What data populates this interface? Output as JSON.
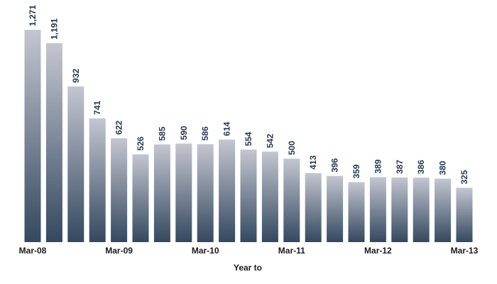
{
  "chart_data": {
    "type": "bar",
    "title": "",
    "xlabel": "Year to",
    "ylabel": "",
    "ylim": [
      0,
      1271
    ],
    "grid": false,
    "legend": "none",
    "values": [
      1271,
      1191,
      932,
      741,
      622,
      526,
      585,
      590,
      586,
      614,
      554,
      542,
      500,
      413,
      396,
      359,
      389,
      387,
      386,
      380,
      325
    ],
    "value_labels": [
      "1,271",
      "1,191",
      "932",
      "741",
      "622",
      "526",
      "585",
      "590",
      "586",
      "614",
      "554",
      "542",
      "500",
      "413",
      "396",
      "359",
      "389",
      "387",
      "386",
      "380",
      "325"
    ],
    "x_ticks": [
      {
        "index": 0,
        "label": "Mar-08"
      },
      {
        "index": 4,
        "label": "Mar-09"
      },
      {
        "index": 8,
        "label": "Mar-10"
      },
      {
        "index": 12,
        "label": "Mar-11"
      },
      {
        "index": 16,
        "label": "Mar-12"
      },
      {
        "index": 20,
        "label": "Mar-13"
      }
    ],
    "colors": {
      "bar_top": "#c4c6d0",
      "bar_bottom": "#33485f",
      "label": "#243a55"
    }
  }
}
